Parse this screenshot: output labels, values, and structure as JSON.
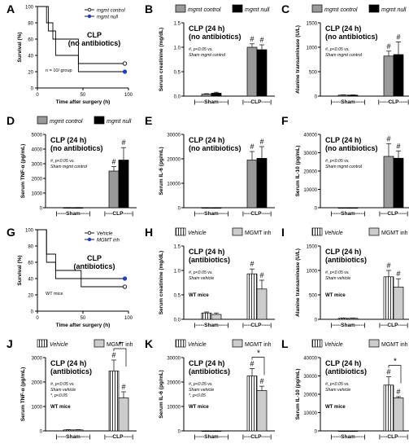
{
  "colors": {
    "control": "#999999",
    "null": "#000000",
    "vehicle_fill": "#ffffff",
    "inh_fill": "#cccccc",
    "blue": "#1f3fbf"
  },
  "chart_data": [
    {
      "panel": "A",
      "type": "line",
      "title": "CLP",
      "subtitle": "(no antibiotics)",
      "xlabel": "Time after surgery (h)",
      "ylabel": "Survival (%)",
      "xticks": [
        0,
        50,
        100
      ],
      "yticks": [
        0,
        20,
        40,
        60,
        80,
        100
      ],
      "xlim": [
        0,
        100
      ],
      "ylim": [
        0,
        100
      ],
      "note": "n = 10/ group",
      "series": [
        {
          "name": "mgmt control",
          "steps": [
            [
              0,
              100
            ],
            [
              10,
              100
            ],
            [
              10,
              80
            ],
            [
              17,
              80
            ],
            [
              17,
              60
            ],
            [
              45,
              60
            ],
            [
              45,
              30
            ],
            [
              96,
              30
            ]
          ],
          "marker": "open"
        },
        {
          "name": "mgmt null",
          "steps": [
            [
              0,
              100
            ],
            [
              12,
              100
            ],
            [
              12,
              70
            ],
            [
              20,
              70
            ],
            [
              20,
              40
            ],
            [
              45,
              40
            ],
            [
              45,
              20
            ],
            [
              96,
              20
            ]
          ],
          "marker": "filled"
        }
      ]
    },
    {
      "panel": "B",
      "type": "bar",
      "title": "CLP (24 h)",
      "subtitle": "(no antibiotics)",
      "ylabel": "Serum creatinine (mg/dL)",
      "yticks": [
        "0.0",
        "0.5",
        "1.0",
        "1.5"
      ],
      "ylim": [
        0,
        1.5
      ],
      "groups": [
        "|-----Sham-----|",
        "|----CLP-----|"
      ],
      "legend": [
        "mgmt control",
        "mgmt null"
      ],
      "series": [
        {
          "name": "mgmt control",
          "values": [
            0.04,
            1.0
          ],
          "err": [
            0.01,
            0.07
          ]
        },
        {
          "name": "mgmt null",
          "values": [
            0.06,
            0.95
          ],
          "err": [
            0.02,
            0.1
          ]
        }
      ],
      "marks": [
        "#",
        "#"
      ],
      "note_lines": [
        "#, p<0.05 vs.",
        "Sham mgmt control"
      ]
    },
    {
      "panel": "C",
      "type": "bar",
      "title": "CLP (24 h)",
      "subtitle": "(no antibiotics)",
      "ylabel": "Alanine transaminase (U/L)",
      "yticks": [
        "0",
        "500",
        "1000",
        "1500"
      ],
      "ylim": [
        0,
        1500
      ],
      "groups": [
        "|-----Sham-----|",
        "|-----CLP-----|"
      ],
      "legend": [
        "mgmt control",
        "mgmt null"
      ],
      "series": [
        {
          "name": "mgmt control",
          "values": [
            20,
            820
          ],
          "err": [
            5,
            100
          ]
        },
        {
          "name": "mgmt null",
          "values": [
            20,
            850
          ],
          "err": [
            5,
            260
          ]
        }
      ],
      "marks": [
        "#",
        "#"
      ],
      "note_lines": [
        "#, p<0.05 vs.",
        "Sham mgmt control"
      ]
    },
    {
      "panel": "D",
      "type": "bar",
      "title": "CLP (24 h)",
      "subtitle": "(no antibiotics)",
      "ylabel": "Serum TNF-α (pg/mL)",
      "yticks": [
        "0",
        "1000",
        "2000",
        "3000",
        "4000",
        "5000"
      ],
      "ylim": [
        0,
        5000
      ],
      "groups": [
        "|-----Sham-----|",
        "|----CLP-----|"
      ],
      "legend": [
        "mgmt control",
        "mgmt null"
      ],
      "series": [
        {
          "name": "mgmt control",
          "values": [
            10,
            2500
          ],
          "err": [
            5,
            300
          ]
        },
        {
          "name": "mgmt null",
          "values": [
            10,
            3250
          ],
          "err": [
            5,
            850
          ]
        }
      ],
      "marks": [
        "#",
        "#"
      ],
      "note_lines": [
        "#, p<0.05 vs.",
        "Sham mgmt control"
      ]
    },
    {
      "panel": "E",
      "type": "bar",
      "title": "CLP (24 h)",
      "subtitle": "(no antibiotics)",
      "ylabel": "Serum IL-6 (pg/mL)",
      "yticks": [
        "0",
        "10000",
        "20000",
        "30000"
      ],
      "ylim": [
        0,
        30000
      ],
      "groups": [
        "|-----Sham-----|",
        "|----CLP-----|"
      ],
      "legend": [],
      "series": [
        {
          "name": "mgmt control",
          "values": [
            50,
            19500
          ],
          "err": [
            20,
            3500
          ]
        },
        {
          "name": "mgmt null",
          "values": [
            50,
            20200
          ],
          "err": [
            20,
            4800
          ]
        }
      ],
      "marks": [
        "#",
        "#"
      ],
      "note_lines": []
    },
    {
      "panel": "F",
      "type": "bar",
      "title": "CLP (24 h)",
      "subtitle": "(no antibiotics)",
      "ylabel": "Serum IL-10 (pg/mL)",
      "yticks": [
        "0",
        "10000",
        "20000",
        "30000",
        "40000"
      ],
      "ylim": [
        0,
        40000
      ],
      "groups": [
        "|-----Sham-----|",
        "|----CLP-----|"
      ],
      "legend": [],
      "series": [
        {
          "name": "mgmt control",
          "values": [
            50,
            28000
          ],
          "err": [
            20,
            7000
          ]
        },
        {
          "name": "mgmt null",
          "values": [
            50,
            27000
          ],
          "err": [
            20,
            4000
          ]
        }
      ],
      "marks": [
        "#",
        "#"
      ],
      "note_lines": [
        "#, p<0.05 vs.",
        "Sham mgmt control"
      ]
    },
    {
      "panel": "G",
      "type": "line",
      "title": "CLP",
      "subtitle": "(antibiotics)",
      "xlabel": "Time after surgery (h)",
      "ylabel": "Survival (%)",
      "xticks": [
        0,
        50,
        100
      ],
      "yticks": [
        0,
        20,
        40,
        60,
        80,
        100
      ],
      "xlim": [
        0,
        100
      ],
      "ylim": [
        0,
        100
      ],
      "note": "WT mice",
      "series": [
        {
          "name": "Vehicle",
          "steps": [
            [
              0,
              100
            ],
            [
              10,
              100
            ],
            [
              10,
              60
            ],
            [
              20,
              60
            ],
            [
              20,
              40
            ],
            [
              48,
              40
            ],
            [
              48,
              30
            ],
            [
              96,
              30
            ]
          ],
          "marker": "open"
        },
        {
          "name": "MGMT inh",
          "steps": [
            [
              0,
              100
            ],
            [
              10,
              100
            ],
            [
              10,
              70
            ],
            [
              20,
              70
            ],
            [
              20,
              50
            ],
            [
              48,
              50
            ],
            [
              48,
              40
            ],
            [
              96,
              40
            ]
          ],
          "marker": "filled-blue"
        }
      ]
    },
    {
      "panel": "H",
      "type": "bar",
      "title": "CLP (24 h)",
      "subtitle": "(antibiotics)",
      "ylabel": "Serum creatinine (mg/dL)",
      "yticks": [
        "0.0",
        "0.5",
        "1.0",
        "1.5"
      ],
      "ylim": [
        0,
        1.5
      ],
      "groups": [
        "|-----Sham-----|",
        "|----CLP-----|"
      ],
      "legend": [
        "Vehicle",
        "MGMT inh"
      ],
      "series": [
        {
          "name": "Vehicle",
          "values": [
            0.13,
            0.93
          ],
          "err": [
            0.02,
            0.1
          ]
        },
        {
          "name": "MGMT inh",
          "values": [
            0.1,
            0.62
          ],
          "err": [
            0.03,
            0.18
          ]
        }
      ],
      "marks": [
        "#",
        "#"
      ],
      "note_lines": [
        "#, p<0.05 vs.",
        "Sham vehicle"
      ],
      "extra": "WT mice"
    },
    {
      "panel": "I",
      "type": "bar",
      "title": "CLP (24 h)",
      "subtitle": "(antibiotics)",
      "ylabel": "Alanine transaminase (U/L)",
      "yticks": [
        "0",
        "500",
        "1000",
        "1500"
      ],
      "ylim": [
        0,
        1500
      ],
      "groups": [
        "|-----Sham-----|",
        "|----CLP-----|"
      ],
      "legend": [
        "Vehicle",
        "MGMT inh"
      ],
      "series": [
        {
          "name": "Vehicle",
          "values": [
            20,
            870
          ],
          "err": [
            5,
            130
          ]
        },
        {
          "name": "MGMT inh",
          "values": [
            20,
            660
          ],
          "err": [
            5,
            170
          ]
        }
      ],
      "marks": [
        "#",
        "#"
      ],
      "note_lines": [
        "#, p<0.05 vs.",
        "Sham vehicle"
      ],
      "extra": "WT mice"
    },
    {
      "panel": "J",
      "type": "bar",
      "title": "CLP (24 h)",
      "subtitle": "(antibiotics)",
      "ylabel": "Serum TNF-α (pg/mL)",
      "yticks": [
        "0",
        "1000",
        "2000",
        "3000"
      ],
      "ylim": [
        0,
        3000
      ],
      "groups": [
        "|-----Sham-----|",
        "|----CLP-----|"
      ],
      "legend": [
        "Vehicle",
        "MGMT inh"
      ],
      "series": [
        {
          "name": "Vehicle",
          "values": [
            40,
            2450
          ],
          "err": [
            10,
            450
          ]
        },
        {
          "name": "MGMT inh",
          "values": [
            40,
            1350
          ],
          "err": [
            10,
            250
          ]
        }
      ],
      "marks": [
        "#",
        "#"
      ],
      "star": "*",
      "note_lines": [
        "#, p<0.05 vs.",
        "Sham vehicle",
        "*, p<0.05"
      ],
      "extra": "WT mice"
    },
    {
      "panel": "K",
      "type": "bar",
      "title": "CLP (24 h)",
      "subtitle": "(antibiotics)",
      "ylabel": "Serum IL-6 (pg/mL)",
      "yticks": [
        "0",
        "10000",
        "20000",
        "30000"
      ],
      "ylim": [
        0,
        30000
      ],
      "groups": [
        "|-----Sham-----|",
        "|----CLP-----|"
      ],
      "legend": [
        "Vehicle",
        "MGMT inh"
      ],
      "series": [
        {
          "name": "Vehicle",
          "values": [
            50,
            22500
          ],
          "err": [
            20,
            3000
          ]
        },
        {
          "name": "MGMT inh",
          "values": [
            50,
            16500
          ],
          "err": [
            20,
            1800
          ]
        }
      ],
      "marks": [
        "#",
        "#"
      ],
      "star": "*",
      "note_lines": [
        "#, p<0.05 vs.",
        "Sham vehicle",
        "*, p<0.05"
      ],
      "extra": "WT mice"
    },
    {
      "panel": "L",
      "type": "bar",
      "title": "CLP (24 h)",
      "subtitle": "(antibiotics)",
      "ylabel": "Serum IL-10 (pg/mL)",
      "yticks": [
        "0",
        "10000",
        "20000",
        "30000",
        "40000"
      ],
      "ylim": [
        0,
        40000
      ],
      "groups": [
        "|-----Sham-----|",
        "|----CLP-----|"
      ],
      "legend": [
        "Vehicle",
        "MGMT inh"
      ],
      "series": [
        {
          "name": "Vehicle",
          "values": [
            50,
            25000
          ],
          "err": [
            20,
            4500
          ]
        },
        {
          "name": "MGMT inh",
          "values": [
            50,
            18000
          ],
          "err": [
            20,
            700
          ]
        }
      ],
      "marks": [
        "#",
        "#"
      ],
      "star": "*",
      "note_lines": [
        "#, p<0.05 vs.",
        "Sham vehicle"
      ],
      "extra": "WT mice"
    }
  ]
}
